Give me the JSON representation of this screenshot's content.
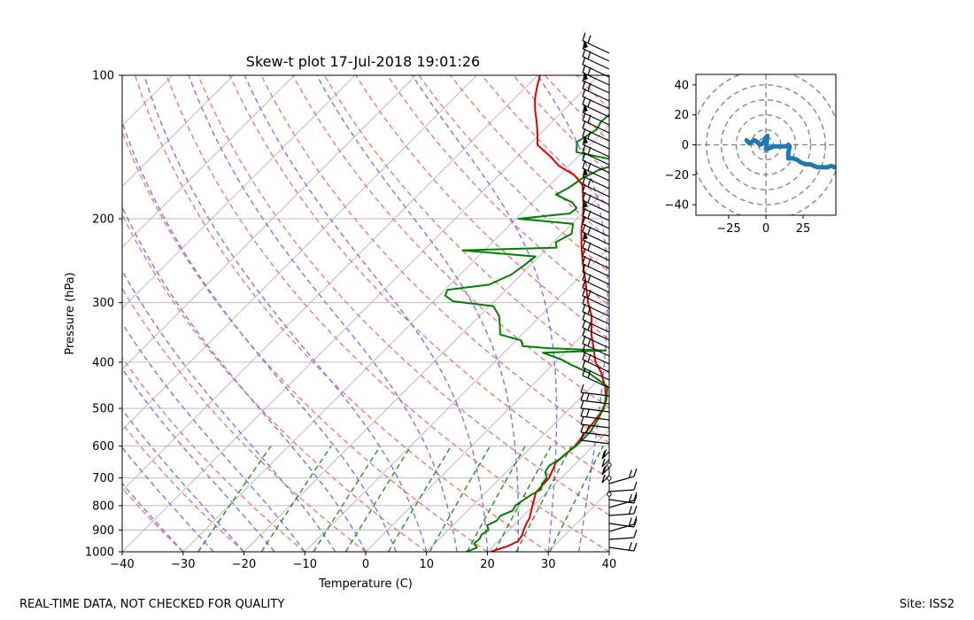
{
  "chart_data": [
    {
      "type": "line",
      "title": "Skew-t plot 17-Jul-2018 19:01:26",
      "xlabel": "Temperature (C)",
      "ylabel": "Pressure (hPa)",
      "xlim": [
        -40,
        40
      ],
      "ylim": [
        1000,
        100
      ],
      "y_scale": "log",
      "x_ticks": [
        -40,
        -30,
        -20,
        -10,
        0,
        10,
        20,
        30,
        40
      ],
      "y_ticks": [
        1000,
        900,
        800,
        700,
        600,
        500,
        400,
        300,
        200,
        100
      ],
      "grid": true,
      "series": [
        {
          "role": "temperature",
          "color": "#e00000",
          "points": [
            [
              1000,
              20.5
            ],
            [
              975,
              22.3
            ],
            [
              950,
              23.3
            ],
            [
              925,
              23.0
            ],
            [
              900,
              22.4
            ],
            [
              875,
              21.8
            ],
            [
              850,
              21.4
            ],
            [
              800,
              19.8
            ],
            [
              750,
              18.2
            ],
            [
              700,
              18.0
            ],
            [
              650,
              16.6
            ],
            [
              600,
              17.0
            ],
            [
              550,
              16.4
            ],
            [
              500,
              15.6
            ],
            [
              470,
              13.8
            ],
            [
              450,
              12.2
            ],
            [
              420,
              9.2
            ],
            [
              400,
              6.6
            ],
            [
              370,
              3.6
            ],
            [
              350,
              1.4
            ],
            [
              320,
              -1.6
            ],
            [
              300,
              -4.4
            ],
            [
              270,
              -8.4
            ],
            [
              250,
              -11.4
            ],
            [
              230,
              -14.5
            ],
            [
              210,
              -17.6
            ],
            [
              200,
              -19.0
            ],
            [
              185,
              -21.6
            ],
            [
              170,
              -24.6
            ],
            [
              162,
              -27.6
            ],
            [
              155,
              -31.6
            ],
            [
              148,
              -34.6
            ],
            [
              140,
              -38.6
            ],
            [
              132,
              -40.6
            ],
            [
              125,
              -42.6
            ],
            [
              118,
              -44.8
            ],
            [
              112,
              -46.6
            ],
            [
              105,
              -48.4
            ],
            [
              100,
              -49.6
            ]
          ]
        },
        {
          "role": "dewpoint",
          "color": "#008000",
          "points": [
            [
              1000,
              16.5
            ],
            [
              980,
              17.6
            ],
            [
              960,
              16.4
            ],
            [
              940,
              16.6
            ],
            [
              920,
              16.2
            ],
            [
              900,
              16.6
            ],
            [
              880,
              15.6
            ],
            [
              860,
              16.4
            ],
            [
              840,
              16.2
            ],
            [
              820,
              17.4
            ],
            [
              800,
              17.0
            ],
            [
              780,
              17.4
            ],
            [
              760,
              17.8
            ],
            [
              740,
              18.6
            ],
            [
              720,
              17.8
            ],
            [
              700,
              17.6
            ],
            [
              680,
              16.4
            ],
            [
              660,
              16.0
            ],
            [
              640,
              16.6
            ],
            [
              620,
              16.8
            ],
            [
              600,
              17.2
            ],
            [
              560,
              17.2
            ],
            [
              520,
              16.2
            ],
            [
              480,
              14.6
            ],
            [
              450,
              12.6
            ],
            [
              420,
              7.0
            ],
            [
              405,
              3.0
            ],
            [
              395,
              0.6
            ],
            [
              382,
              -3.6
            ],
            [
              378,
              6.4
            ],
            [
              374,
              -3.2
            ],
            [
              370,
              -8.0
            ],
            [
              360,
              -9.2
            ],
            [
              350,
              -13.6
            ],
            [
              340,
              -14.6
            ],
            [
              320,
              -16.8
            ],
            [
              305,
              -19.4
            ],
            [
              298,
              -26.8
            ],
            [
              290,
              -29.0
            ],
            [
              282,
              -29.6
            ],
            [
              275,
              -23.6
            ],
            [
              262,
              -21.6
            ],
            [
              250,
              -21.0
            ],
            [
              240,
              -20.6
            ],
            [
              233,
              -33.6
            ],
            [
              230,
              -18.6
            ],
            [
              224,
              -19.6
            ],
            [
              215,
              -18.4
            ],
            [
              205,
              -19.8
            ],
            [
              200,
              -29.6
            ],
            [
              195,
              -22.0
            ],
            [
              190,
              -21.8
            ],
            [
              185,
              -23.4
            ],
            [
              178,
              -27.4
            ],
            [
              172,
              -26.4
            ],
            [
              165,
              -25.8
            ],
            [
              158,
              -24.4
            ],
            [
              152,
              -21.6
            ],
            [
              145,
              -31.0
            ],
            [
              138,
              -32.6
            ],
            [
              130,
              -31.4
            ],
            [
              125,
              -32.0
            ],
            [
              118,
              -31.6
            ],
            [
              112,
              -31.6
            ],
            [
              106,
              -30.6
            ],
            [
              100,
              -28.6
            ]
          ]
        }
      ]
    },
    {
      "type": "scatter",
      "title": "",
      "xlabel": "",
      "ylabel": "",
      "xlim": [
        -47,
        47
      ],
      "ylim": [
        -47,
        47
      ],
      "x_ticks": [
        -25,
        0,
        25
      ],
      "y_ticks": [
        40,
        20,
        0,
        -20,
        -40
      ],
      "rings": [
        5,
        10,
        20,
        30,
        40,
        50
      ],
      "color": "#1f77b4",
      "points": [
        [
          -13,
          3
        ],
        [
          -11,
          1
        ],
        [
          -8,
          3
        ],
        [
          -6,
          2
        ],
        [
          -4,
          0
        ],
        [
          -2,
          1
        ],
        [
          0,
          5
        ],
        [
          1,
          6
        ],
        [
          0,
          -3
        ],
        [
          3,
          -2
        ],
        [
          5,
          -1
        ],
        [
          8,
          -1
        ],
        [
          10,
          -1
        ],
        [
          12,
          -1
        ],
        [
          14,
          -1
        ],
        [
          15,
          0
        ],
        [
          16,
          -1
        ],
        [
          15,
          -6
        ],
        [
          15,
          -9
        ],
        [
          18,
          -9
        ],
        [
          21,
          -10
        ],
        [
          24,
          -12
        ],
        [
          27,
          -13
        ],
        [
          30,
          -13
        ],
        [
          32,
          -14
        ],
        [
          35,
          -15
        ],
        [
          38,
          -15
        ],
        [
          41,
          -15
        ],
        [
          44,
          -14
        ],
        [
          46,
          -15
        ]
      ]
    }
  ],
  "footer": {
    "left": "REAL-TIME DATA, NOT CHECKED FOR QUALITY",
    "right": "Site: ISS2"
  },
  "colors": {
    "dry_adiabat": "#f07878",
    "moist_adiabat": "#7878ee",
    "mixing_ratio": "#2e8b2e",
    "isotherm": "#b4b4b4",
    "isobar": "#b4b4b4",
    "barb": "#000000"
  }
}
